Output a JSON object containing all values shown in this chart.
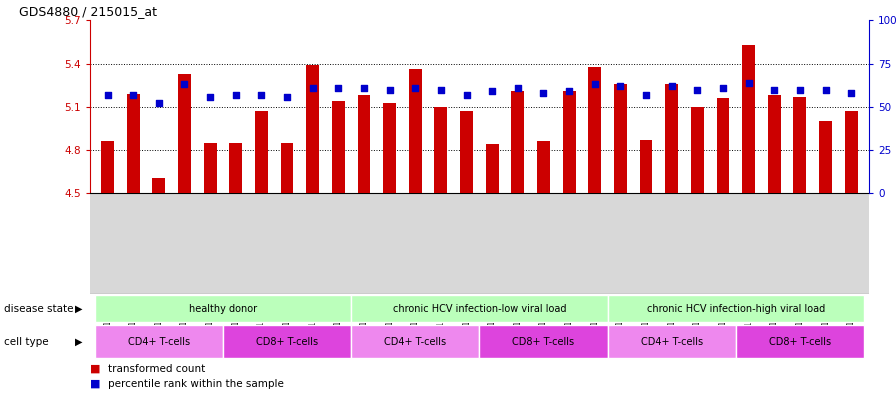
{
  "title": "GDS4880 / 215015_at",
  "samples": [
    "GSM1210739",
    "GSM1210740",
    "GSM1210741",
    "GSM1210742",
    "GSM1210743",
    "GSM1210754",
    "GSM1210755",
    "GSM1210756",
    "GSM1210757",
    "GSM1210758",
    "GSM1210745",
    "GSM1210750",
    "GSM1210751",
    "GSM1210752",
    "GSM1210753",
    "GSM1210760",
    "GSM1210765",
    "GSM1210766",
    "GSM1210767",
    "GSM1210768",
    "GSM1210744",
    "GSM1210746",
    "GSM1210747",
    "GSM1210748",
    "GSM1210749",
    "GSM1210759",
    "GSM1210761",
    "GSM1210762",
    "GSM1210763",
    "GSM1210764"
  ],
  "bar_values": [
    4.86,
    5.19,
    4.61,
    5.33,
    4.85,
    4.85,
    5.07,
    4.85,
    5.39,
    5.14,
    5.18,
    5.13,
    5.36,
    5.1,
    5.07,
    4.84,
    5.21,
    4.86,
    5.21,
    5.38,
    5.26,
    4.87,
    5.26,
    5.1,
    5.16,
    5.53,
    5.18,
    5.17,
    5.0,
    5.07
  ],
  "percentile_values": [
    57,
    57,
    52,
    63,
    56,
    57,
    57,
    56,
    61,
    61,
    61,
    60,
    61,
    60,
    57,
    59,
    61,
    58,
    59,
    63,
    62,
    57,
    62,
    60,
    61,
    64,
    60,
    60,
    60,
    58
  ],
  "bar_color": "#cc0000",
  "dot_color": "#0000cc",
  "ylim_left": [
    4.5,
    5.7
  ],
  "ylim_right": [
    0,
    100
  ],
  "yticks_left": [
    4.5,
    4.8,
    5.1,
    5.4,
    5.7
  ],
  "yticks_right": [
    0,
    25,
    50,
    75,
    100
  ],
  "grid_vals": [
    4.8,
    5.1,
    5.4
  ],
  "ds_groups": [
    {
      "label": "healthy donor",
      "start": 0,
      "end": 10,
      "color": "#bbffbb"
    },
    {
      "label": "chronic HCV infection-low viral load",
      "start": 10,
      "end": 20,
      "color": "#bbffbb"
    },
    {
      "label": "chronic HCV infection-high viral load",
      "start": 20,
      "end": 30,
      "color": "#bbffbb"
    }
  ],
  "ct_groups": [
    {
      "label": "CD4+ T-cells",
      "start": 0,
      "end": 5,
      "color": "#ee88ee"
    },
    {
      "label": "CD8+ T-cells",
      "start": 5,
      "end": 10,
      "color": "#dd44dd"
    },
    {
      "label": "CD4+ T-cells",
      "start": 10,
      "end": 15,
      "color": "#ee88ee"
    },
    {
      "label": "CD8+ T-cells",
      "start": 15,
      "end": 20,
      "color": "#dd44dd"
    },
    {
      "label": "CD4+ T-cells",
      "start": 20,
      "end": 25,
      "color": "#ee88ee"
    },
    {
      "label": "CD8+ T-cells",
      "start": 25,
      "end": 30,
      "color": "#dd44dd"
    }
  ],
  "disease_label": "disease state",
  "cell_label": "cell type",
  "legend_bar": "transformed count",
  "legend_dot": "percentile rank within the sample",
  "bar_width": 0.5,
  "bg_color": "#ffffff",
  "plot_bg": "#ffffff",
  "tick_bg": "#d8d8d8",
  "left_axis_color": "#cc0000",
  "right_axis_color": "#0000cc"
}
